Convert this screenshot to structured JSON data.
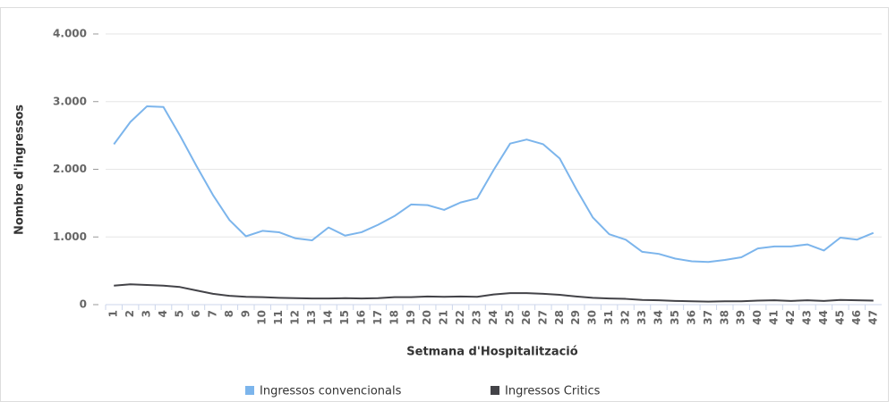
{
  "chart_data": {
    "type": "line",
    "x_label": "Setmana d'Hospitalització",
    "y_label": "Nombre d'ingressos",
    "categories": [
      "1",
      "2",
      "3",
      "4",
      "5",
      "6",
      "7",
      "8",
      "9",
      "10",
      "11",
      "12",
      "13",
      "14",
      "15",
      "16",
      "17",
      "18",
      "19",
      "20",
      "21",
      "22",
      "23",
      "24",
      "25",
      "26",
      "27",
      "28",
      "29",
      "30",
      "31",
      "32",
      "33",
      "34",
      "35",
      "36",
      "37",
      "38",
      "39",
      "40",
      "41",
      "42",
      "43",
      "44",
      "45",
      "46",
      "47"
    ],
    "series": [
      {
        "name": "Ingressos convencionals",
        "color": "#7cb5ec",
        "values": [
          2370,
          2700,
          2930,
          2920,
          2500,
          2050,
          1620,
          1250,
          1010,
          1090,
          1070,
          980,
          950,
          1140,
          1020,
          1070,
          1180,
          1310,
          1480,
          1470,
          1400,
          1510,
          1570,
          1990,
          2380,
          2440,
          2370,
          2160,
          1710,
          1290,
          1040,
          960,
          780,
          750,
          680,
          640,
          630,
          660,
          700,
          830,
          860,
          860,
          890,
          800,
          990,
          960,
          1060
        ]
      },
      {
        "name": "Ingressos Critics",
        "color": "#434348",
        "values": [
          280,
          300,
          290,
          280,
          260,
          210,
          160,
          130,
          115,
          110,
          100,
          95,
          90,
          90,
          95,
          90,
          95,
          110,
          110,
          120,
          115,
          120,
          115,
          150,
          170,
          170,
          160,
          145,
          120,
          100,
          90,
          85,
          70,
          65,
          55,
          50,
          45,
          50,
          50,
          60,
          65,
          55,
          65,
          55,
          70,
          65,
          60
        ]
      }
    ],
    "ylim": [
      0,
      4000
    ],
    "yticks": [
      0,
      {
        "value": 1000,
        "label": "1.000"
      },
      {
        "value": 2000,
        "label": "2.000"
      },
      {
        "value": 3000,
        "label": "3.000"
      },
      {
        "value": 4000,
        "label": "4.000"
      }
    ],
    "grid": true,
    "legend": "bottom"
  }
}
